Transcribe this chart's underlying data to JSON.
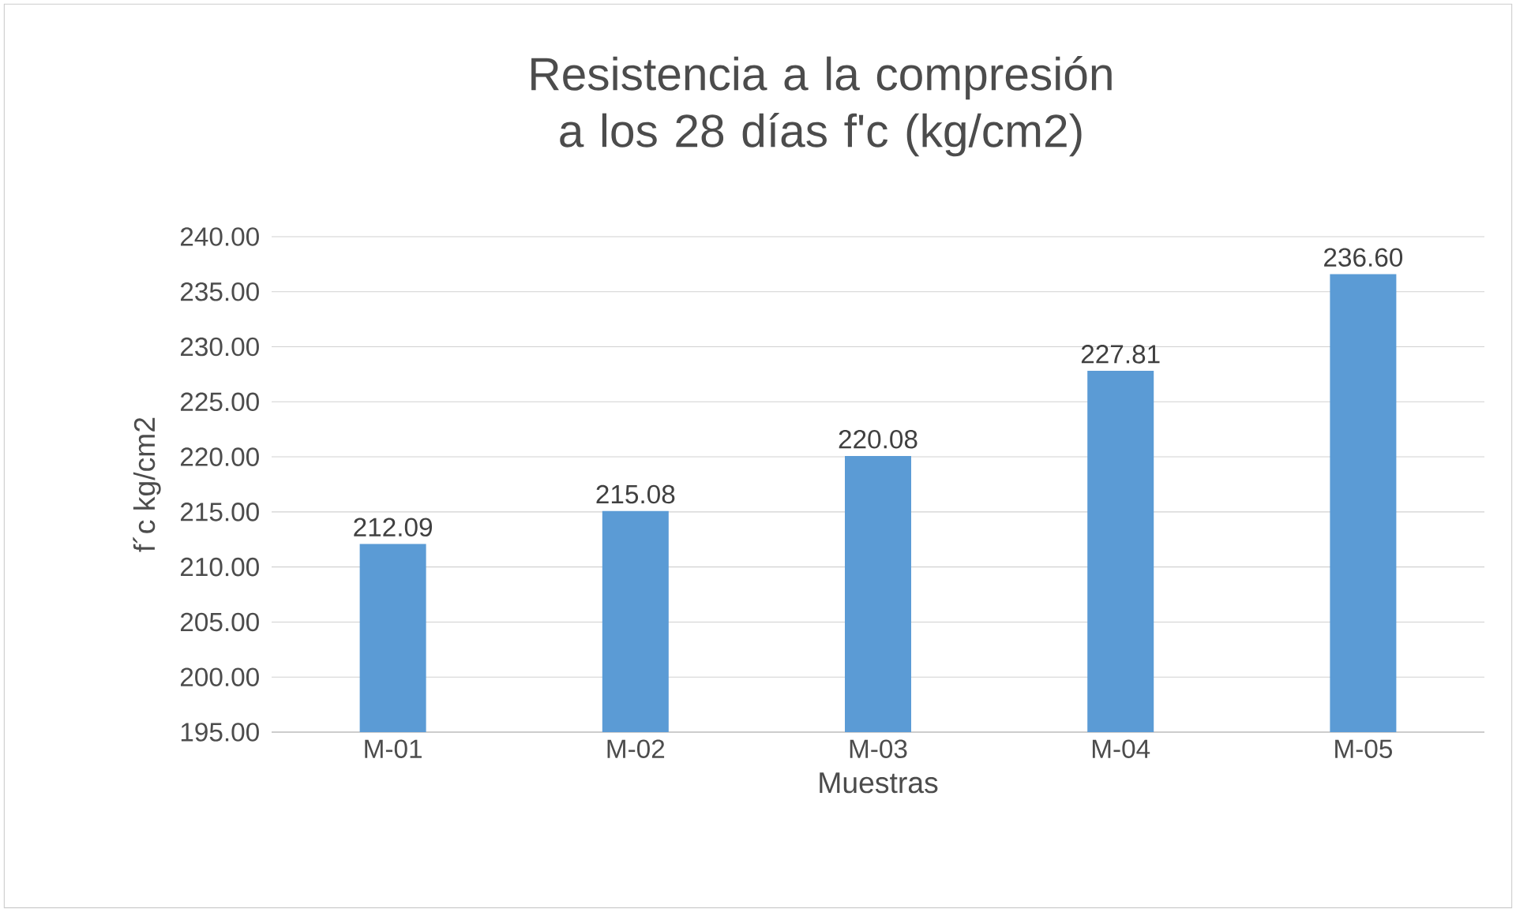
{
  "chart_data": {
    "type": "bar",
    "title": "Resistencia a la compresión a los 28 días f'c (kg/cm2)",
    "xlabel": "Muestras",
    "ylabel": "f´c kg/cm2",
    "categories": [
      "M-01",
      "M-02",
      "M-03",
      "M-04",
      "M-05"
    ],
    "values": [
      212.09,
      215.08,
      220.08,
      227.81,
      236.6
    ],
    "value_labels": [
      "212.09",
      "215.08",
      "220.08",
      "227.81",
      "236.60"
    ],
    "color": "#5b9bd5",
    "ylim": [
      195,
      240
    ],
    "yticks": [
      {
        "value": 195,
        "label": "195.00"
      },
      {
        "value": 200,
        "label": "200.00"
      },
      {
        "value": 205,
        "label": "205.00"
      },
      {
        "value": 210,
        "label": "210.00"
      },
      {
        "value": 215,
        "label": "215.00"
      },
      {
        "value": 220,
        "label": "220.00"
      },
      {
        "value": 225,
        "label": "225.00"
      },
      {
        "value": 230,
        "label": "230.00"
      },
      {
        "value": 235,
        "label": "235.00"
      },
      {
        "value": 240,
        "label": "240.00"
      }
    ],
    "grid": "y"
  }
}
